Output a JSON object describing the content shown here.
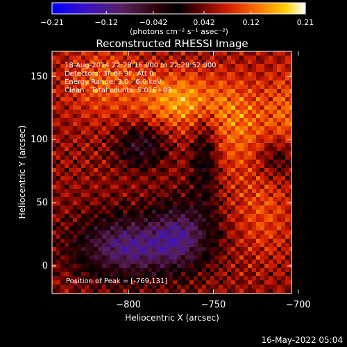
{
  "chart_data": {
    "type": "heatmap",
    "title": "Reconstructed RHESSI Image",
    "xlabel": "Heliocentric X (arcsec)",
    "ylabel": "Heliocentric Y (arcsec)",
    "xlim": [
      -845,
      -704
    ],
    "ylim": [
      -22,
      170
    ],
    "x_ticks": [
      {
        "value": -800,
        "label": "−800"
      },
      {
        "value": -750,
        "label": "−750"
      },
      {
        "value": -700,
        "label": "−700"
      }
    ],
    "y_ticks": [
      {
        "value": 0,
        "label": "0"
      },
      {
        "value": 50,
        "label": "50"
      },
      {
        "value": 100,
        "label": "100"
      },
      {
        "value": 150,
        "label": "150"
      }
    ],
    "colorbar": {
      "range": [
        -0.21,
        0.21
      ],
      "ticks": [
        {
          "value": -0.21,
          "label": "−0.21"
        },
        {
          "value": -0.12,
          "label": "−0.12"
        },
        {
          "value": -0.042,
          "label": "−0.042"
        },
        {
          "value": 0.042,
          "label": "0.042"
        },
        {
          "value": 0.12,
          "label": "0.12"
        },
        {
          "value": 0.21,
          "label": "0.21"
        }
      ],
      "units_label": "(photons cm⁻² s⁻¹ asec⁻²)"
    },
    "annotations": {
      "time_range": "18-Aug-2014 22:28:16.000 to 22:29:52.000",
      "detectors": "Detectors: 3F 6F 9F, Att 0",
      "energy_range": "Energy Range: 3.0 - 6.0 keV",
      "clean_counts": "Clean - Total counts: 5.01E+03",
      "peak_position": "Position of Peak = [-769,131]"
    },
    "footer_date": "16-May-2022 05:04"
  }
}
